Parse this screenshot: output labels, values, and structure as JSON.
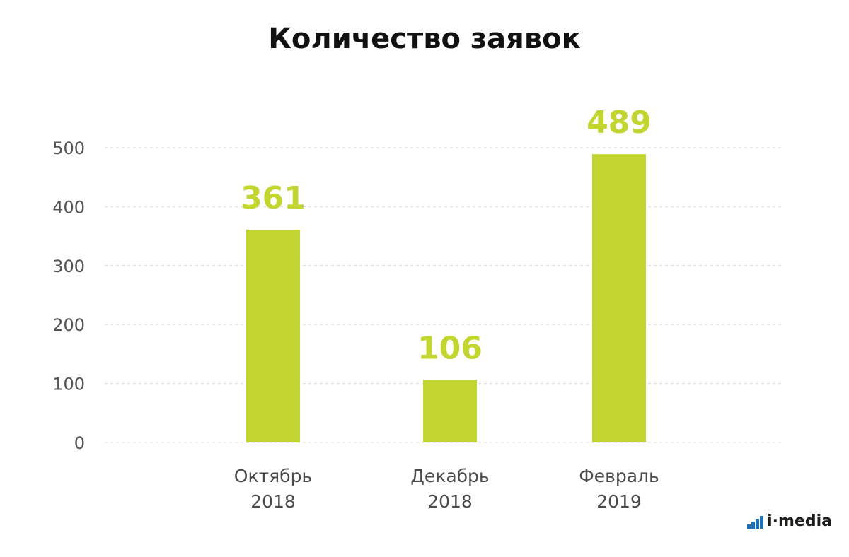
{
  "chart_data": {
    "type": "bar",
    "title": "Количество заявок",
    "categories": [
      [
        "Октябрь",
        "2018"
      ],
      [
        "Декабрь",
        "2018"
      ],
      [
        "Февраль",
        "2019"
      ]
    ],
    "values": [
      361,
      106,
      489
    ],
    "data_labels": [
      "361",
      "106",
      "489"
    ],
    "ylim": [
      0,
      500
    ],
    "yticks": [
      0,
      100,
      200,
      300,
      400,
      500
    ],
    "grid": true,
    "bar_color": "#c2d530",
    "label_color": "#c2d530"
  },
  "brand": {
    "text": "i·media"
  }
}
